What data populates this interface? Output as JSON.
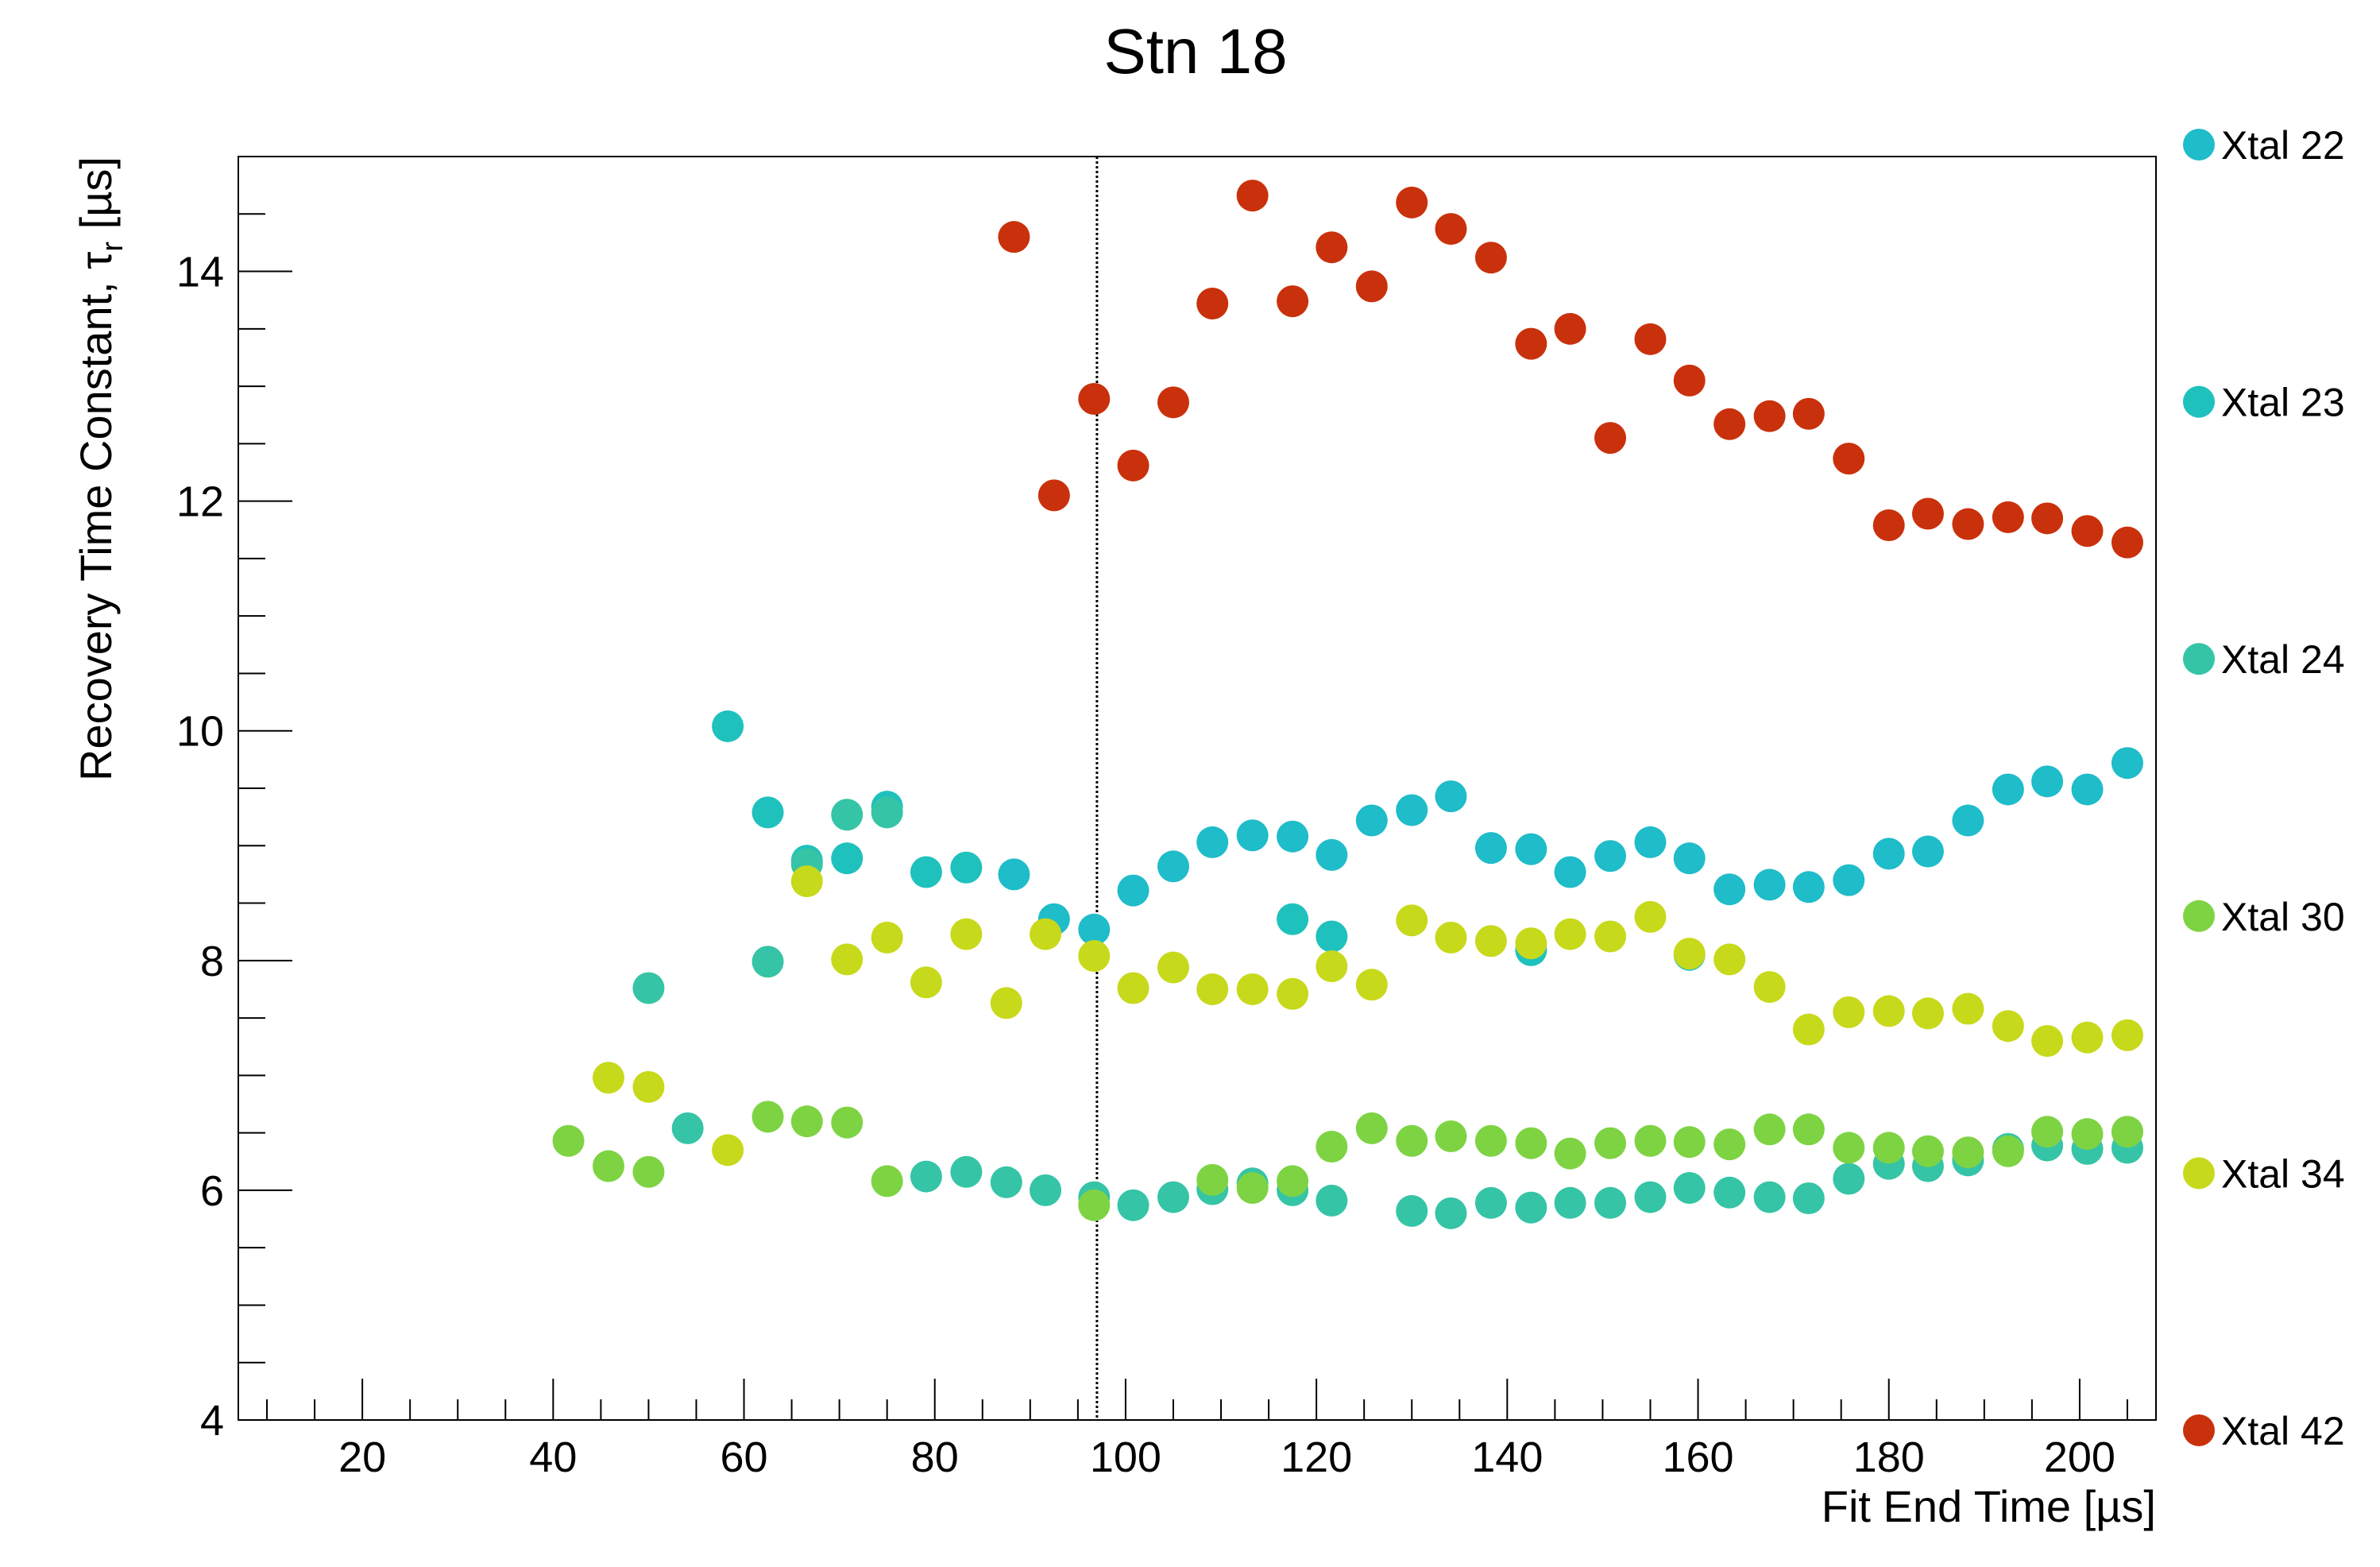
{
  "chart_data": {
    "type": "scatter",
    "title": "Stn 18",
    "xlabel": "Fit End Time [µs]",
    "ylabel": "Recovery Time Constant,  τ",
    "ylabel_sub": "r",
    "ylabel_unit": " [µs]",
    "xlim": [
      7,
      208
    ],
    "ylim": [
      4,
      15
    ],
    "x_ticks": [
      20,
      40,
      60,
      80,
      100,
      120,
      140,
      160,
      180,
      200
    ],
    "y_ticks": [
      4,
      6,
      8,
      10,
      12,
      14
    ],
    "x_tick_labels": [
      "20",
      "40",
      "60",
      "80",
      "100",
      "120",
      "140",
      "160",
      "180",
      "200"
    ],
    "y_tick_labels": [
      "4",
      "6",
      "8",
      "10",
      "12",
      "14"
    ],
    "grid": false,
    "legend_position": "right",
    "reference_line": {
      "x": 97,
      "style": "dotted"
    },
    "series": [
      {
        "name": "Xtal 22",
        "color": "#1fbcc9",
        "x": [
          88.3,
          92.5,
          96.7,
          100.8,
          105.0,
          109.1,
          113.3,
          117.5,
          121.6,
          125.8,
          130.0,
          134.1,
          138.3,
          142.5,
          146.6,
          150.8,
          155.0,
          159.1,
          163.3,
          167.5,
          171.6,
          175.8,
          180.0,
          184.1,
          188.3,
          192.5,
          196.6,
          200.8,
          205.0
        ],
        "y": [
          8.75,
          8.36,
          8.27,
          8.61,
          8.82,
          9.03,
          9.09,
          9.08,
          8.92,
          9.22,
          9.31,
          9.43,
          8.98,
          8.97,
          8.77,
          8.91,
          9.03,
          8.89,
          8.62,
          8.66,
          8.64,
          8.7,
          8.93,
          8.95,
          9.22,
          9.49,
          9.56,
          9.49,
          9.72
        ]
      },
      {
        "name": "Xtal 23",
        "color": "#1fc1bd",
        "x": [
          58.3,
          62.5,
          66.6,
          70.8,
          75.0,
          79.1,
          83.3,
          117.5,
          121.6,
          142.5,
          159.1
        ],
        "y": [
          10.04,
          9.29,
          8.87,
          8.89,
          9.34,
          8.77,
          8.81,
          8.36,
          8.21,
          8.09,
          8.05
        ]
      },
      {
        "name": "Xtal 24",
        "color": "#35c4a6",
        "x": [
          50.0,
          54.1,
          62.5,
          66.6,
          70.8,
          75.0,
          79.1,
          83.3,
          87.5,
          91.6,
          96.7,
          100.8,
          105.0,
          109.1,
          113.3,
          117.5,
          121.6,
          130.0,
          134.1,
          138.3,
          142.5,
          146.6,
          150.8,
          155.0,
          159.1,
          163.3,
          167.5,
          171.6,
          175.8,
          180.0,
          184.1,
          188.3,
          192.5,
          196.6,
          200.8,
          205.0
        ],
        "y": [
          7.76,
          6.54,
          7.99,
          8.84,
          9.27,
          9.29,
          6.12,
          6.16,
          6.07,
          6.0,
          5.94,
          5.87,
          5.94,
          6.01,
          6.06,
          6.0,
          5.91,
          5.82,
          5.8,
          5.89,
          5.85,
          5.89,
          5.89,
          5.94,
          6.02,
          5.98,
          5.94,
          5.93,
          6.1,
          6.23,
          6.21,
          6.26,
          6.36,
          6.39,
          6.36,
          6.37
        ]
      },
      {
        "name": "Xtal 30",
        "color": "#7ed343",
        "x": [
          41.6,
          45.8,
          50.0,
          62.5,
          66.6,
          70.8,
          75.0,
          96.7,
          109.1,
          113.3,
          117.5,
          121.6,
          125.8,
          130.0,
          134.1,
          138.3,
          142.5,
          146.6,
          150.8,
          155.0,
          159.1,
          163.3,
          167.5,
          171.6,
          175.8,
          180.0,
          184.1,
          188.3,
          192.5,
          196.6,
          200.8,
          205.0
        ],
        "y": [
          6.43,
          6.21,
          6.16,
          6.64,
          6.6,
          6.59,
          6.08,
          5.87,
          6.09,
          6.02,
          6.08,
          6.38,
          6.54,
          6.43,
          6.47,
          6.43,
          6.41,
          6.32,
          6.41,
          6.43,
          6.42,
          6.4,
          6.53,
          6.53,
          6.37,
          6.37,
          6.34,
          6.33,
          6.34,
          6.51,
          6.49,
          6.51
        ]
      },
      {
        "name": "Xtal 34",
        "color": "#c7d91b",
        "x": [
          45.8,
          50.0,
          58.3,
          66.6,
          70.8,
          75.0,
          79.1,
          83.3,
          87.5,
          91.6,
          96.7,
          100.8,
          105.0,
          109.1,
          113.3,
          117.5,
          121.6,
          125.8,
          130.0,
          134.1,
          138.3,
          142.5,
          146.6,
          150.8,
          155.0,
          159.1,
          163.3,
          167.5,
          171.6,
          175.8,
          180.0,
          184.1,
          188.3,
          192.5,
          196.6,
          200.8,
          205.0
        ],
        "y": [
          6.98,
          6.9,
          6.35,
          8.69,
          8.01,
          8.2,
          7.81,
          8.23,
          7.63,
          8.23,
          8.04,
          7.76,
          7.94,
          7.75,
          7.75,
          7.71,
          7.95,
          7.79,
          8.35,
          8.2,
          8.17,
          8.15,
          8.23,
          8.21,
          8.38,
          8.06,
          8.01,
          7.77,
          7.4,
          7.55,
          7.56,
          7.54,
          7.58,
          7.43,
          7.3,
          7.33,
          7.35
        ]
      },
      {
        "name": "Xtal 42",
        "color": "#c9310c",
        "x": [
          88.3,
          92.5,
          96.7,
          100.8,
          105.0,
          109.1,
          113.3,
          117.5,
          121.6,
          125.8,
          130.0,
          134.1,
          138.3,
          142.5,
          146.6,
          150.8,
          155.0,
          159.1,
          163.3,
          167.5,
          171.6,
          175.8,
          180.0,
          184.1,
          188.3,
          192.5,
          196.6,
          200.8,
          205.0
        ],
        "y": [
          14.3,
          12.05,
          12.89,
          12.31,
          12.86,
          13.72,
          14.66,
          13.74,
          14.21,
          13.87,
          14.6,
          14.37,
          14.12,
          13.37,
          13.5,
          12.55,
          13.41,
          13.05,
          12.67,
          12.74,
          12.76,
          12.37,
          11.79,
          11.89,
          11.8,
          11.86,
          11.85,
          11.74,
          11.64
        ]
      }
    ]
  }
}
